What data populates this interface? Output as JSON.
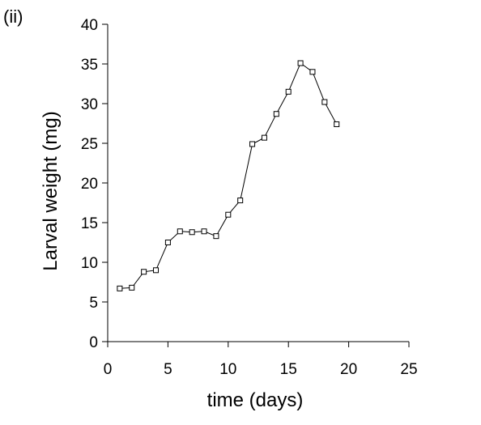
{
  "panel_label": "(ii)",
  "chart_data": {
    "type": "line",
    "xlabel": "time (days)",
    "ylabel": "Larval weight (mg)",
    "xlim": [
      0,
      25
    ],
    "ylim": [
      0,
      40
    ],
    "x_ticks": [
      0,
      5,
      10,
      15,
      20,
      25
    ],
    "y_ticks": [
      0,
      5,
      10,
      15,
      20,
      25,
      30,
      35,
      40
    ],
    "grid": false,
    "marker": "open-square",
    "line_color": "#000000",
    "series": [
      {
        "x": [
          1,
          2,
          3,
          4,
          5,
          6,
          7,
          8,
          9,
          10,
          11,
          12,
          13,
          14,
          15,
          16,
          17,
          18,
          19
        ],
        "y": [
          6.7,
          6.8,
          8.8,
          9.0,
          12.5,
          13.9,
          13.8,
          13.9,
          13.3,
          16.0,
          17.8,
          24.9,
          25.7,
          28.7,
          31.5,
          35.1,
          34.0,
          30.2,
          27.4
        ]
      }
    ]
  }
}
